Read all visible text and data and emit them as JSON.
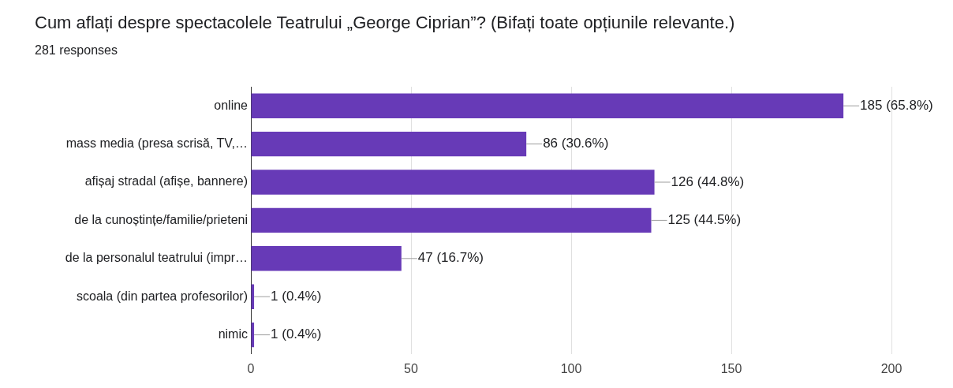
{
  "chart_data": {
    "type": "bar",
    "orientation": "horizontal",
    "title": "Cum aflați despre spectacolele Teatrului „George Ciprian”? (Bifați toate opțiunile relevante.)",
    "subtitle": "281 responses",
    "categories": [
      "online",
      "mass media (presa scrisă, TV,…",
      "afișaj stradal (afișe, bannere)",
      "de la cunoștințe/familie/prieteni",
      "de la personalul teatrului (impr…",
      "scoala (din partea profesorilor)",
      "nimic"
    ],
    "values": [
      185,
      86,
      126,
      125,
      47,
      1,
      1
    ],
    "color": "#673ab7",
    "value_labels": [
      "185 (65.8%)",
      "86 (30.6%)",
      "126 (44.8%)",
      "125 (44.5%)",
      "47 (16.7%)",
      "1 (0.4%)",
      "1 (0.4%)"
    ],
    "xlim": [
      0,
      200
    ],
    "xticks": [
      0,
      50,
      100,
      150,
      200
    ],
    "grid": "x",
    "legend": false
  }
}
